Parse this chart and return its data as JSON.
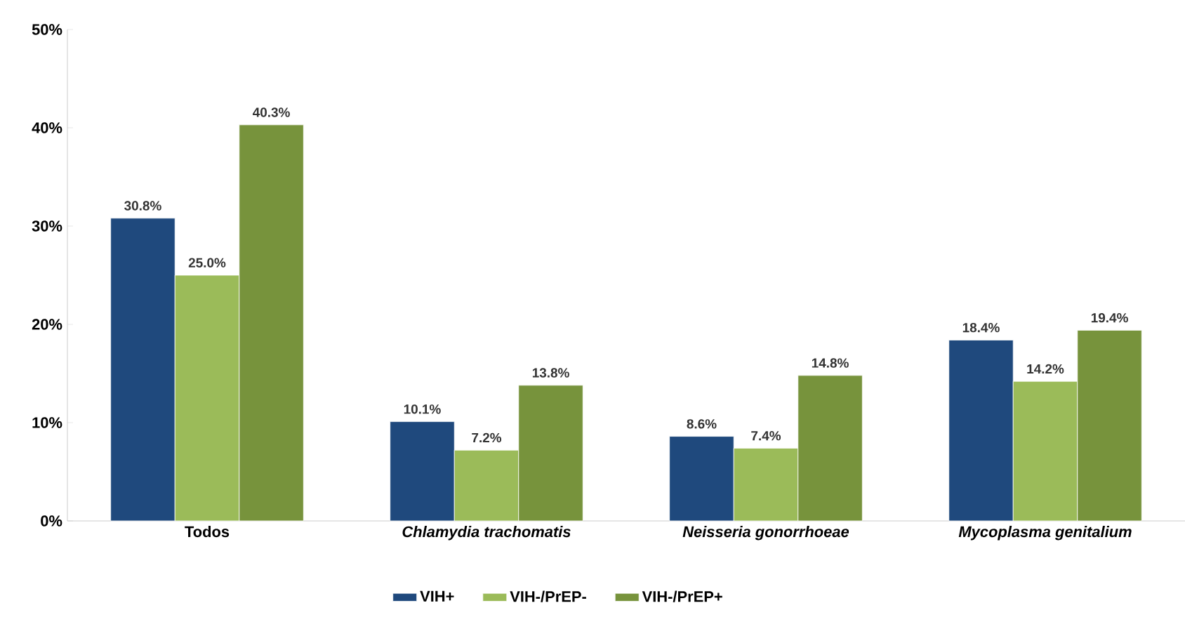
{
  "chart_data": {
    "type": "bar",
    "categories": [
      "Todos",
      "Chlamydia trachomatis",
      "Neisseria gonorrhoeae",
      "Mycoplasma genitalium"
    ],
    "series": [
      {
        "name": "VIH+",
        "color": "#1f497d",
        "values": [
          30.8,
          10.1,
          8.6,
          18.4
        ],
        "value_labels": [
          "30.8%",
          "10.1%",
          "8.6%",
          "18.4%"
        ]
      },
      {
        "name": "VIH-/PrEP-",
        "color": "#9bbb59",
        "values": [
          25.0,
          7.2,
          7.4,
          14.2
        ],
        "value_labels": [
          "25.0%",
          "7.2%",
          "7.4%",
          "14.2%"
        ]
      },
      {
        "name": "VIH-/PrEP+",
        "color": "#77933c",
        "values": [
          40.3,
          13.8,
          14.8,
          19.4
        ],
        "value_labels": [
          "40.3%",
          "13.8%",
          "14.8%",
          "19.4%"
        ]
      }
    ],
    "ylim": [
      0,
      50
    ],
    "yticks": [
      {
        "value": 0,
        "label": "0%"
      },
      {
        "value": 10,
        "label": "10%"
      },
      {
        "value": 20,
        "label": "20%"
      },
      {
        "value": 30,
        "label": "30%"
      },
      {
        "value": 40,
        "label": "40%"
      },
      {
        "value": 50,
        "label": "50%"
      }
    ],
    "grid": false,
    "legend": "bottom"
  }
}
